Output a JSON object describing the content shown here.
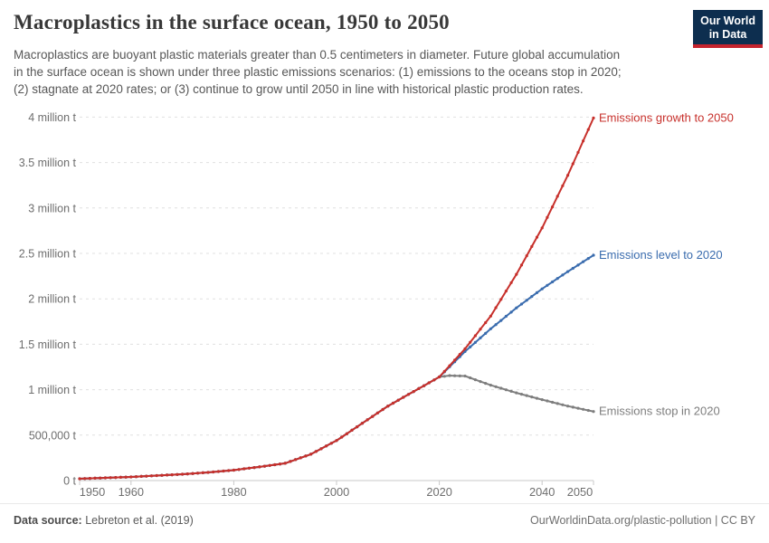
{
  "header": {
    "title": "Macroplastics in the surface ocean, 1950 to 2050",
    "subtitle_lines": [
      "Macroplastics are buoyant plastic materials greater than 0.5 centimeters in diameter. Future global accumulation",
      "in the surface ocean is shown under three plastic emissions scenarios: (1) emissions to the oceans stop in 2020;",
      "(2) stagnate at 2020 rates; or (3) continue to grow until 2050 in line with historical plastic production rates."
    ],
    "logo": {
      "line1": "Our World",
      "line2": "in Data",
      "bg_color": "#0d2e4f",
      "stripe_color": "#c5232d"
    }
  },
  "footer": {
    "source_label": "Data source:",
    "source_value": " Lebreton et al. (2019)",
    "credit": "OurWorldinData.org/plastic-pollution | CC BY"
  },
  "chart_data": {
    "type": "line",
    "title": "Macroplastics in the surface ocean, 1950 to 2050",
    "xlabel": "",
    "ylabel": "",
    "unit": "t",
    "xlim": [
      1950,
      2050
    ],
    "ylim": [
      0,
      4000000
    ],
    "grid": true,
    "legend": "line-end-labels",
    "marker_interval_years": 1,
    "xticks": [
      1950,
      1960,
      1980,
      2000,
      2020,
      2040,
      2050
    ],
    "yticks": [
      {
        "value": 0,
        "label": "0 t"
      },
      {
        "value": 500000,
        "label": "500,000 t"
      },
      {
        "value": 1000000,
        "label": "1 million t"
      },
      {
        "value": 1500000,
        "label": "1.5 million t"
      },
      {
        "value": 2000000,
        "label": "2 million t"
      },
      {
        "value": 2500000,
        "label": "2.5 million t"
      },
      {
        "value": 3000000,
        "label": "3 million t"
      },
      {
        "value": 3500000,
        "label": "3.5 million t"
      },
      {
        "value": 4000000,
        "label": "4 million t"
      }
    ],
    "series": [
      {
        "name": "Emissions stop in 2020",
        "color": "#7e7e7e",
        "points": [
          [
            1950,
            20000
          ],
          [
            1955,
            30000
          ],
          [
            1960,
            40000
          ],
          [
            1965,
            55000
          ],
          [
            1970,
            70000
          ],
          [
            1975,
            90000
          ],
          [
            1980,
            115000
          ],
          [
            1985,
            150000
          ],
          [
            1990,
            190000
          ],
          [
            1995,
            290000
          ],
          [
            2000,
            440000
          ],
          [
            2005,
            630000
          ],
          [
            2010,
            820000
          ],
          [
            2015,
            980000
          ],
          [
            2020,
            1140000
          ],
          [
            2022,
            1155000
          ],
          [
            2025,
            1150000
          ],
          [
            2030,
            1050000
          ],
          [
            2035,
            965000
          ],
          [
            2040,
            890000
          ],
          [
            2045,
            820000
          ],
          [
            2050,
            760000
          ]
        ]
      },
      {
        "name": "Emissions level to 2020",
        "color": "#3a6cae",
        "points": [
          [
            1950,
            20000
          ],
          [
            1955,
            30000
          ],
          [
            1960,
            40000
          ],
          [
            1965,
            55000
          ],
          [
            1970,
            70000
          ],
          [
            1975,
            90000
          ],
          [
            1980,
            115000
          ],
          [
            1985,
            150000
          ],
          [
            1990,
            190000
          ],
          [
            1995,
            290000
          ],
          [
            2000,
            440000
          ],
          [
            2005,
            630000
          ],
          [
            2010,
            820000
          ],
          [
            2015,
            980000
          ],
          [
            2020,
            1140000
          ],
          [
            2025,
            1420000
          ],
          [
            2030,
            1670000
          ],
          [
            2035,
            1900000
          ],
          [
            2040,
            2110000
          ],
          [
            2045,
            2300000
          ],
          [
            2050,
            2480000
          ]
        ]
      },
      {
        "name": "Emissions growth to 2050",
        "color": "#c7302b",
        "points": [
          [
            1950,
            20000
          ],
          [
            1955,
            30000
          ],
          [
            1960,
            40000
          ],
          [
            1965,
            55000
          ],
          [
            1970,
            70000
          ],
          [
            1975,
            90000
          ],
          [
            1980,
            115000
          ],
          [
            1985,
            150000
          ],
          [
            1990,
            190000
          ],
          [
            1995,
            290000
          ],
          [
            2000,
            440000
          ],
          [
            2005,
            630000
          ],
          [
            2010,
            820000
          ],
          [
            2015,
            980000
          ],
          [
            2020,
            1140000
          ],
          [
            2025,
            1450000
          ],
          [
            2030,
            1810000
          ],
          [
            2035,
            2270000
          ],
          [
            2040,
            2780000
          ],
          [
            2045,
            3360000
          ],
          [
            2050,
            3990000
          ]
        ]
      }
    ]
  }
}
